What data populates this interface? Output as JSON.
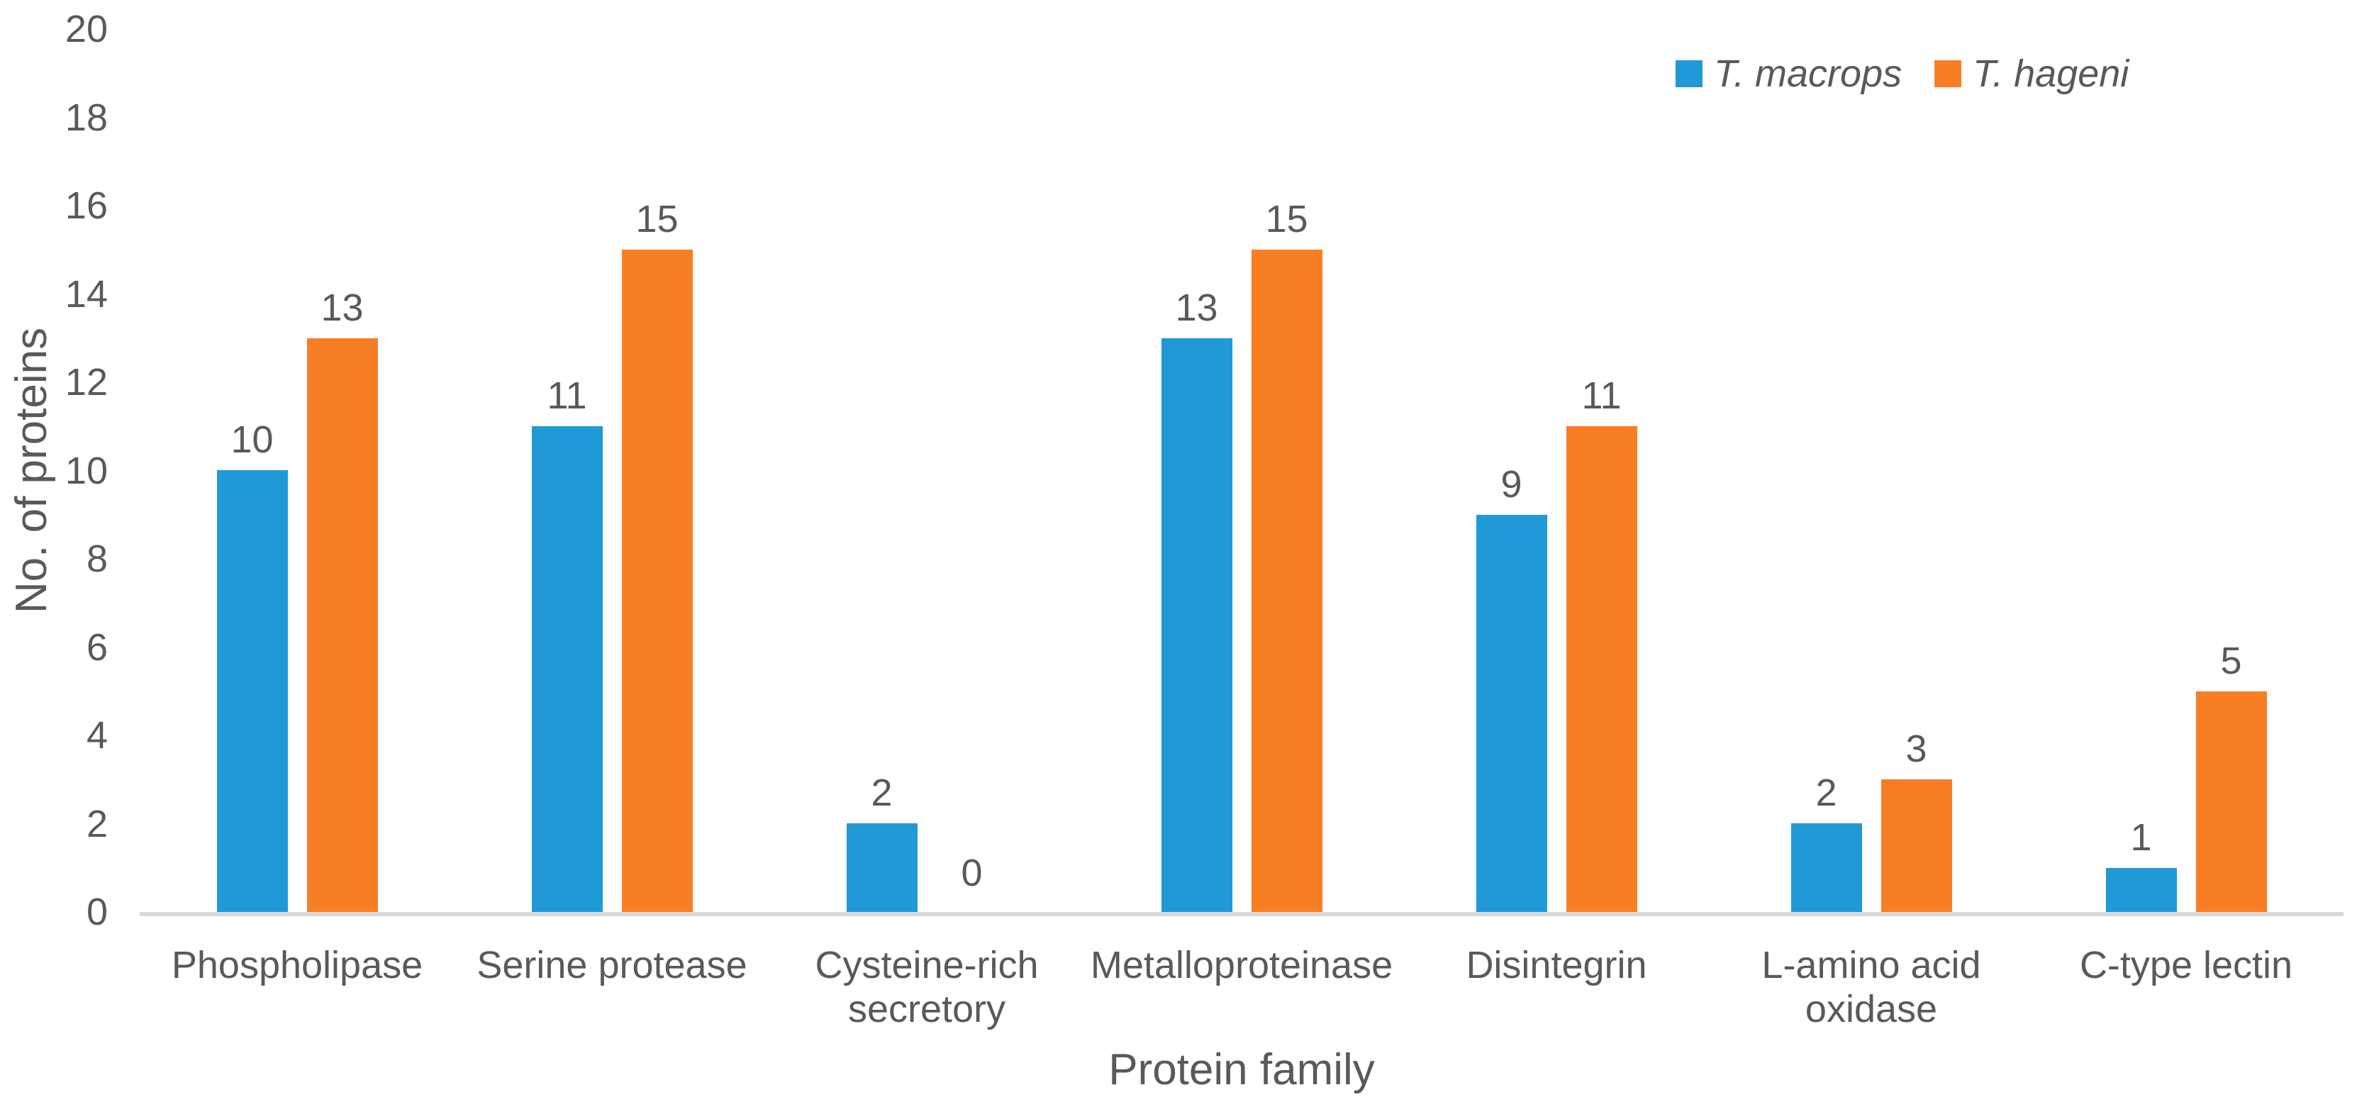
{
  "chart_data": {
    "type": "bar",
    "title": "",
    "xlabel": "Protein family",
    "ylabel": "No. of proteins",
    "categories": [
      "Phospholipase",
      "Serine protease",
      "Cysteine-rich secretory",
      "Metalloproteinase",
      "Disintegrin",
      "L-amino acid oxidase",
      "C-type lectin"
    ],
    "series": [
      {
        "name": "T. macrops",
        "color": "#1F9AD7",
        "values": [
          10,
          11,
          2,
          13,
          9,
          2,
          1
        ]
      },
      {
        "name": "T. hageni",
        "color": "#F87E26",
        "values": [
          13,
          15,
          0,
          15,
          11,
          3,
          5
        ]
      }
    ],
    "ylim": [
      0,
      20
    ],
    "ytick_step": 2,
    "grid": false,
    "data_labels": true,
    "legend_position": "top-right",
    "axis_line_color": "#D9D9D9",
    "text_color": "#595959"
  }
}
